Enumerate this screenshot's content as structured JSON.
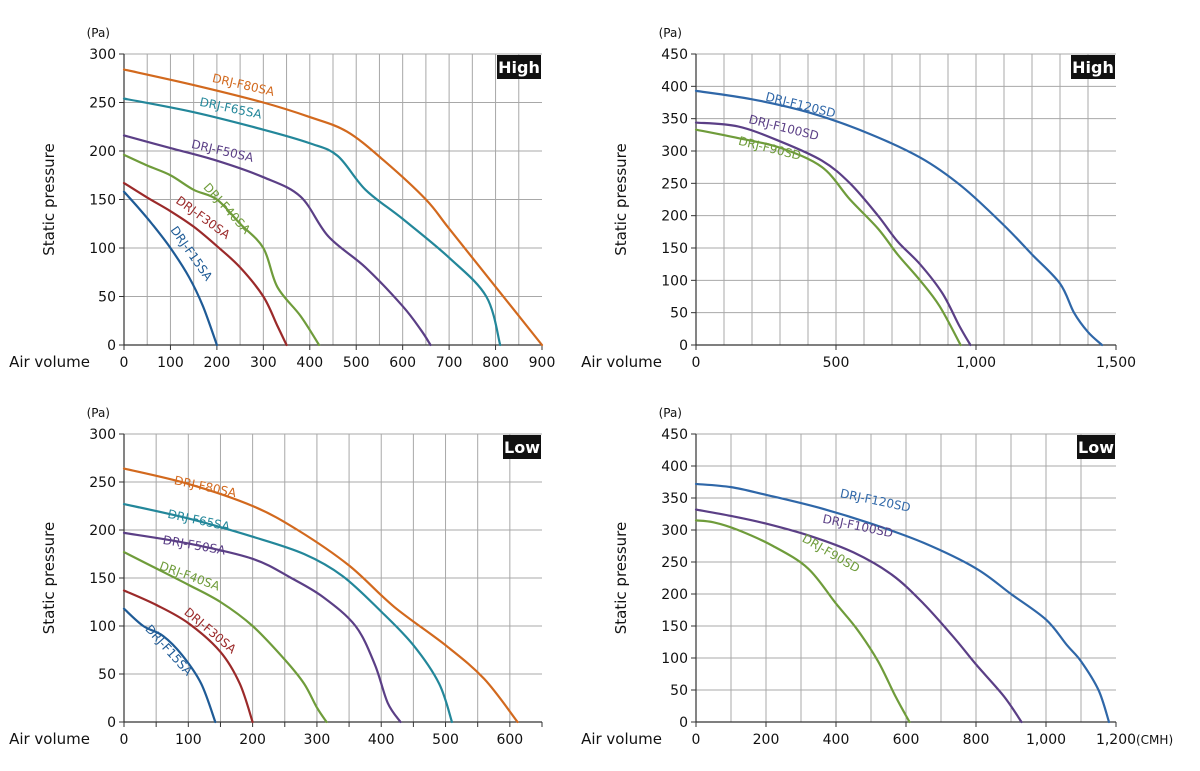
{
  "colors": {
    "F15SA": "#1f5b96",
    "F30SA": "#9b2a2a",
    "F40SA": "#6f9c3b",
    "F50SA": "#5b3f86",
    "F65SA": "#23879a",
    "F80SA": "#d2691e",
    "F120SD": "#2f67a8",
    "F100SD": "#5b3f86",
    "F90SD": "#6f9c3b",
    "grid": "#a8a8a8",
    "badge_bg": "#111111",
    "badge_text": "#ffffff"
  },
  "chart_data": [
    {
      "type": "line",
      "badge": "High",
      "ylabel": "Static pressure",
      "yunit": "(Pa)",
      "xlabel": "Air volume",
      "xunit": "",
      "xlim": [
        0,
        900
      ],
      "ylim": [
        0,
        300
      ],
      "xticks": [
        0,
        100,
        200,
        300,
        400,
        500,
        600,
        700,
        800,
        900
      ],
      "yticks": [
        0,
        50,
        100,
        150,
        200,
        250,
        300
      ],
      "xtick_labels": [
        "0",
        "100",
        "200",
        "300",
        "400",
        "500",
        "600",
        "700",
        "800",
        "900"
      ],
      "ytick_labels": [
        "0",
        "50",
        "100",
        "150",
        "200",
        "250",
        "300"
      ],
      "grid": true,
      "series": [
        {
          "name": "DRJ-F80SA",
          "color_key": "F80SA",
          "x": [
            0,
            150,
            300,
            400,
            480,
            560,
            650,
            700,
            800,
            900
          ],
          "y": [
            284,
            268,
            250,
            235,
            220,
            190,
            150,
            120,
            60,
            0
          ]
        },
        {
          "name": "DRJ-F65SA",
          "color_key": "F65SA",
          "x": [
            0,
            150,
            300,
            400,
            460,
            520,
            600,
            700,
            780,
            810
          ],
          "y": [
            254,
            240,
            222,
            208,
            195,
            160,
            130,
            90,
            50,
            0
          ]
        },
        {
          "name": "DRJ-F50SA",
          "color_key": "F50SA",
          "x": [
            0,
            100,
            200,
            300,
            380,
            440,
            520,
            600,
            640,
            660
          ],
          "y": [
            216,
            203,
            190,
            173,
            153,
            112,
            80,
            40,
            15,
            0
          ]
        },
        {
          "name": "DRJ-F40SA",
          "color_key": "F40SA",
          "x": [
            0,
            50,
            100,
            150,
            200,
            250,
            300,
            330,
            380,
            420
          ],
          "y": [
            196,
            185,
            175,
            160,
            150,
            125,
            100,
            60,
            30,
            0
          ]
        },
        {
          "name": "DRJ-F30SA",
          "color_key": "F30SA",
          "x": [
            0,
            50,
            100,
            150,
            200,
            250,
            300,
            330,
            350
          ],
          "y": [
            167,
            152,
            138,
            122,
            102,
            80,
            50,
            20,
            0
          ]
        },
        {
          "name": "DRJ-F15SA",
          "color_key": "F15SA",
          "x": [
            0,
            30,
            60,
            100,
            140,
            170,
            200
          ],
          "y": [
            158,
            142,
            125,
            100,
            70,
            40,
            0
          ]
        }
      ],
      "series_labels": [
        {
          "text": "DRJ-F80SA",
          "x": 255,
          "y": 264,
          "angle": 13
        },
        {
          "text": "DRJ-F65SA",
          "x": 228,
          "y": 240,
          "angle": 12
        },
        {
          "text": "DRJ-F50SA",
          "x": 210,
          "y": 196,
          "angle": 13
        },
        {
          "text": "DRJ-F40SA",
          "x": 215,
          "y": 138,
          "angle": 48
        },
        {
          "text": "DRJ-F30SA",
          "x": 165,
          "y": 128,
          "angle": 36
        },
        {
          "text": "DRJ-F15SA",
          "x": 138,
          "y": 92,
          "angle": 55
        }
      ]
    },
    {
      "type": "line",
      "badge": "High",
      "ylabel": "Static pressure",
      "yunit": "(Pa)",
      "xlabel": "Air volume",
      "xunit": "",
      "xlim": [
        0,
        1500
      ],
      "ylim": [
        0,
        450
      ],
      "xticks": [
        0,
        500,
        1000,
        1500
      ],
      "yticks": [
        0,
        50,
        100,
        150,
        200,
        250,
        300,
        350,
        400,
        450
      ],
      "xtick_labels": [
        "0",
        "500",
        "1,000",
        "1,500"
      ],
      "ytick_labels": [
        "0",
        "50",
        "100",
        "150",
        "200",
        "250",
        "300",
        "350",
        "400",
        "450"
      ],
      "grid": true,
      "series": [
        {
          "name": "DRJ-F120SD",
          "color_key": "F120SD",
          "x": [
            0,
            200,
            400,
            600,
            800,
            950,
            1100,
            1200,
            1300,
            1350,
            1400,
            1450
          ],
          "y": [
            393,
            380,
            360,
            330,
            290,
            245,
            185,
            140,
            95,
            50,
            20,
            0
          ]
        },
        {
          "name": "DRJ-F100SD",
          "color_key": "F100SD",
          "x": [
            0,
            150,
            300,
            450,
            550,
            650,
            720,
            800,
            880,
            940,
            980
          ],
          "y": [
            344,
            338,
            315,
            285,
            250,
            200,
            160,
            125,
            80,
            30,
            0
          ]
        },
        {
          "name": "DRJ-F90SD",
          "color_key": "F90SD",
          "x": [
            0,
            150,
            300,
            450,
            550,
            650,
            720,
            800,
            870,
            945
          ],
          "y": [
            333,
            320,
            305,
            275,
            225,
            180,
            140,
            100,
            60,
            0
          ]
        }
      ],
      "series_labels": [
        {
          "text": "DRJ-F120SD",
          "x": 370,
          "y": 365,
          "angle": 14
        },
        {
          "text": "DRJ-F100SD",
          "x": 310,
          "y": 330,
          "angle": 14
        },
        {
          "text": "DRJ-F90SD",
          "x": 260,
          "y": 298,
          "angle": 14
        }
      ]
    },
    {
      "type": "line",
      "badge": "Low",
      "ylabel": "Static pressure",
      "yunit": "(Pa)",
      "xlabel": "Air volume",
      "xunit": "",
      "xlim": [
        0,
        650
      ],
      "ylim": [
        0,
        300
      ],
      "xticks": [
        0,
        50,
        100,
        150,
        200,
        250,
        300,
        350,
        400,
        450,
        500,
        550,
        600,
        650
      ],
      "yticks": [
        0,
        50,
        100,
        150,
        200,
        250,
        300
      ],
      "xtick_labels": [
        "0",
        "",
        "100",
        "",
        "200",
        "",
        "300",
        "",
        "400",
        "",
        "500",
        "",
        "600",
        ""
      ],
      "ytick_labels": [
        "0",
        "50",
        "100",
        "150",
        "200",
        "250",
        "300"
      ],
      "grid": true,
      "series": [
        {
          "name": "DRJ-F80SA",
          "color_key": "F80SA",
          "x": [
            0,
            100,
            200,
            270,
            350,
            420,
            500,
            560,
            612
          ],
          "y": [
            264,
            248,
            225,
            200,
            163,
            120,
            80,
            45,
            0
          ]
        },
        {
          "name": "DRJ-F65SA",
          "color_key": "F65SA",
          "x": [
            0,
            100,
            200,
            280,
            340,
            400,
            450,
            490,
            510
          ],
          "y": [
            227,
            212,
            193,
            175,
            152,
            115,
            80,
            40,
            0
          ]
        },
        {
          "name": "DRJ-F50SA",
          "color_key": "F50SA",
          "x": [
            0,
            100,
            200,
            260,
            310,
            360,
            390,
            410,
            430
          ],
          "y": [
            197,
            186,
            170,
            150,
            130,
            100,
            60,
            20,
            0
          ]
        },
        {
          "name": "DRJ-F40SA",
          "color_key": "F40SA",
          "x": [
            0,
            50,
            100,
            150,
            200,
            250,
            280,
            300,
            315
          ],
          "y": [
            177,
            160,
            143,
            125,
            100,
            65,
            40,
            15,
            0
          ]
        },
        {
          "name": "DRJ-F30SA",
          "color_key": "F30SA",
          "x": [
            0,
            50,
            100,
            150,
            180,
            200
          ],
          "y": [
            137,
            122,
            103,
            73,
            40,
            0
          ]
        },
        {
          "name": "DRJ-F15SA",
          "color_key": "F15SA",
          "x": [
            0,
            30,
            60,
            90,
            120,
            142
          ],
          "y": [
            118,
            100,
            90,
            70,
            40,
            0
          ]
        }
      ],
      "series_labels": [
        {
          "text": "DRJ-F80SA",
          "x": 125,
          "y": 241,
          "angle": 12
        },
        {
          "text": "DRJ-F65SA",
          "x": 115,
          "y": 206,
          "angle": 12
        },
        {
          "text": "DRJ-F50SA",
          "x": 108,
          "y": 180,
          "angle": 10
        },
        {
          "text": "DRJ-F40SA",
          "x": 100,
          "y": 148,
          "angle": 20
        },
        {
          "text": "DRJ-F30SA",
          "x": 130,
          "y": 92,
          "angle": 40
        },
        {
          "text": "DRJ-F15SA",
          "x": 65,
          "y": 72,
          "angle": 48
        }
      ]
    },
    {
      "type": "line",
      "badge": "Low",
      "ylabel": "Static pressure",
      "yunit": "(Pa)",
      "xlabel": "Air volume",
      "xunit": "(CMH)",
      "xlim": [
        0,
        1200
      ],
      "ylim": [
        0,
        450
      ],
      "xticks": [
        0,
        200,
        400,
        600,
        800,
        1000,
        1200
      ],
      "yticks": [
        0,
        50,
        100,
        150,
        200,
        250,
        300,
        350,
        400,
        450
      ],
      "xtick_labels": [
        "0",
        "200",
        "400",
        "600",
        "800",
        "1,000",
        "1,200"
      ],
      "ytick_labels": [
        "0",
        "50",
        "100",
        "150",
        "200",
        "250",
        "300",
        "350",
        "400",
        "450"
      ],
      "grid": true,
      "series": [
        {
          "name": "DRJ-F120SD",
          "color_key": "F120SD",
          "x": [
            0,
            100,
            200,
            350,
            500,
            650,
            800,
            900,
            1000,
            1060,
            1100,
            1150,
            1180
          ],
          "y": [
            372,
            367,
            355,
            335,
            310,
            280,
            240,
            200,
            160,
            120,
            95,
            50,
            0
          ]
        },
        {
          "name": "DRJ-F100SD",
          "color_key": "F100SD",
          "x": [
            0,
            100,
            200,
            330,
            450,
            560,
            650,
            740,
            800,
            880,
            930
          ],
          "y": [
            332,
            322,
            310,
            290,
            265,
            230,
            185,
            130,
            90,
            40,
            0
          ]
        },
        {
          "name": "DRJ-F90SD",
          "color_key": "F90SD",
          "x": [
            0,
            50,
            120,
            220,
            320,
            400,
            460,
            520,
            570,
            610
          ],
          "y": [
            315,
            312,
            300,
            275,
            240,
            185,
            145,
            95,
            40,
            0
          ]
        }
      ],
      "series_labels": [
        {
          "text": "DRJ-F120SD",
          "x": 510,
          "y": 340,
          "angle": 12
        },
        {
          "text": "DRJ-F100SD",
          "x": 460,
          "y": 300,
          "angle": 12
        },
        {
          "text": "DRJ-F90SD",
          "x": 380,
          "y": 258,
          "angle": 30
        }
      ]
    }
  ]
}
